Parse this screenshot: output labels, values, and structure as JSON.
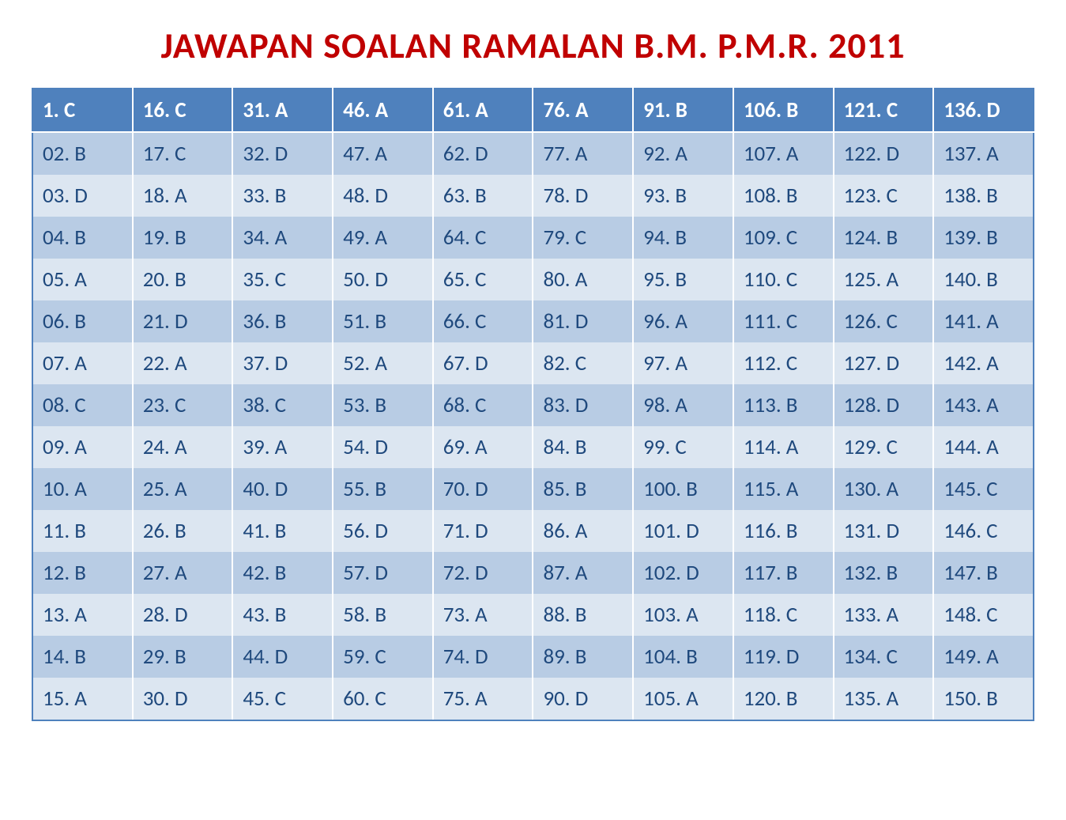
{
  "title": "JAWAPAN SOALAN RAMALAN B.M. P.M.R. 2011",
  "table": {
    "type": "table",
    "columns": 10,
    "rows": 15,
    "colors": {
      "header_bg": "#4f81bd",
      "header_text": "#ffffff",
      "row_odd_bg": "#b8cce4",
      "row_even_bg": "#dce6f1",
      "cell_text": "#1f497d",
      "border": "#4f81bd",
      "inner_border": "#ffffff",
      "title_color": "#c00000"
    },
    "font_size_cell": 27,
    "font_size_title": 46,
    "header": [
      "1.   C",
      "16. C",
      "31. A",
      "46. A",
      "61. A",
      "76. A",
      "91. B",
      "106. B",
      "121. C",
      "136. D"
    ],
    "body": [
      [
        "02. B",
        "17. C",
        "32. D",
        "47. A",
        "62. D",
        "77. A",
        "92. A",
        "107. A",
        "122. D",
        "137. A"
      ],
      [
        "03. D",
        "18. A",
        "33. B",
        "48. D",
        "63. B",
        "78. D",
        "93. B",
        "108. B",
        "123. C",
        "138. B"
      ],
      [
        "04. B",
        "19. B",
        "34. A",
        "49. A",
        "64. C",
        "79. C",
        "94. B",
        "109. C",
        "124. B",
        "139. B"
      ],
      [
        "05. A",
        "20. B",
        "35. C",
        "50. D",
        "65. C",
        "80. A",
        "95. B",
        "110. C",
        "125. A",
        "140. B"
      ],
      [
        "06. B",
        "21. D",
        "36. B",
        "51. B",
        "66. C",
        "81. D",
        "96. A",
        "111. C",
        "126. C",
        "141. A"
      ],
      [
        "07. A",
        "22. A",
        "37. D",
        "52. A",
        "67. D",
        "82. C",
        "97. A",
        "112. C",
        "127. D",
        "142. A"
      ],
      [
        "08. C",
        "23. C",
        "38. C",
        "53. B",
        "68. C",
        "83. D",
        "98. A",
        "113. B",
        "128. D",
        "143. A"
      ],
      [
        "09. A",
        "24. A",
        "39. A",
        "54. D",
        "69. A",
        "84. B",
        "99. C",
        "114. A",
        "129. C",
        "144. A"
      ],
      [
        "10. A",
        "25. A",
        "40. D",
        "55. B",
        "70. D",
        "85. B",
        "100. B",
        "115. A",
        "130. A",
        "145. C"
      ],
      [
        "11. B",
        "26. B",
        "41. B",
        "56. D",
        "71. D",
        "86. A",
        "101. D",
        "116. B",
        "131. D",
        "146. C"
      ],
      [
        "12. B",
        "27. A",
        "42. B",
        "57. D",
        "72. D",
        "87. A",
        "102. D",
        "117. B",
        "132. B",
        "147. B"
      ],
      [
        "13. A",
        "28. D",
        "43. B",
        "58. B",
        "73. A",
        "88. B",
        "103. A",
        "118. C",
        "133. A",
        "148. C"
      ],
      [
        "14. B",
        "29. B",
        "44. D",
        "59. C",
        "74. D",
        "89. B",
        "104. B",
        "119. D",
        "134. C",
        "149. A"
      ],
      [
        "15. A",
        "30. D",
        "45. C",
        "60. C",
        "75. A",
        "90. D",
        "105. A",
        "120. B",
        "135. A",
        "150. B"
      ]
    ]
  }
}
